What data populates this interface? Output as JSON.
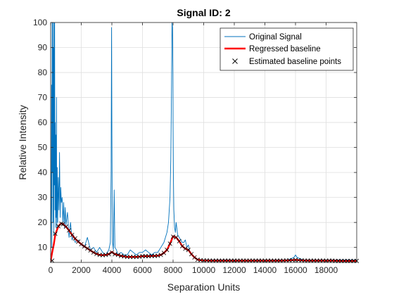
{
  "chart_data": {
    "type": "line",
    "title": "Signal ID: 2",
    "xlabel": "Separation Units",
    "ylabel": "Relative Intensity",
    "xlim": [
      0,
      20000
    ],
    "ylim": [
      4,
      100
    ],
    "xticks": [
      0,
      2000,
      4000,
      6000,
      8000,
      10000,
      12000,
      14000,
      16000,
      18000
    ],
    "yticks": [
      10,
      20,
      30,
      40,
      50,
      60,
      70,
      80,
      90,
      100
    ],
    "grid": true,
    "legend_position": "top-right",
    "colors": {
      "signal": "#0072BD",
      "baseline": "#FF0000",
      "points": "#000000"
    },
    "series": [
      {
        "name": "Original Signal",
        "style": "line",
        "x": [
          0,
          40,
          60,
          80,
          100,
          120,
          140,
          160,
          180,
          200,
          220,
          240,
          260,
          280,
          300,
          320,
          340,
          360,
          380,
          400,
          430,
          460,
          500,
          540,
          580,
          620,
          660,
          700,
          750,
          800,
          850,
          900,
          950,
          1000,
          1100,
          1200,
          1300,
          1400,
          1500,
          1600,
          1800,
          2000,
          2200,
          2400,
          2600,
          2800,
          3000,
          3200,
          3400,
          3600,
          3800,
          3900,
          3950,
          3980,
          4000,
          4020,
          4050,
          4100,
          4150,
          4200,
          4300,
          4400,
          4600,
          4800,
          5000,
          5200,
          5400,
          5600,
          5800,
          6000,
          6200,
          6400,
          6600,
          6800,
          7000,
          7200,
          7400,
          7600,
          7700,
          7800,
          7850,
          7900,
          7930,
          7960,
          7990,
          8000,
          8020,
          8050,
          8100,
          8150,
          8200,
          8300,
          8400,
          8500,
          8600,
          8700,
          8800,
          8900,
          9000,
          9100,
          9200,
          9400,
          9600,
          9800,
          10000,
          10500,
          11000,
          11500,
          12000,
          12500,
          13000,
          13500,
          14000,
          14500,
          15000,
          15500,
          15900,
          16000,
          16100,
          16500,
          17000,
          17500,
          18000,
          18500,
          19000,
          19500,
          20000
        ],
        "y": [
          5,
          30,
          75,
          10,
          100,
          40,
          100,
          20,
          90,
          15,
          100,
          35,
          100,
          25,
          60,
          18,
          55,
          22,
          70,
          16,
          42,
          20,
          38,
          25,
          48,
          22,
          34,
          28,
          30,
          20,
          28,
          18,
          26,
          19,
          24,
          14,
          20,
          13,
          15,
          12,
          13,
          11,
          10,
          14,
          9,
          10,
          8,
          10,
          8,
          7,
          9,
          12,
          40,
          98,
          60,
          30,
          12,
          9,
          33,
          10,
          9,
          7,
          8,
          7,
          7,
          9,
          8,
          7,
          8,
          8,
          9,
          8,
          7,
          8,
          8,
          10,
          12,
          16,
          20,
          30,
          45,
          75,
          100,
          98,
          80,
          60,
          40,
          25,
          18,
          16,
          20,
          15,
          14,
          13,
          12,
          12,
          13,
          10,
          11,
          8,
          7,
          6,
          5,
          5,
          5,
          5,
          5,
          5,
          5,
          4.8,
          4.8,
          5,
          4.8,
          5,
          5,
          5,
          6,
          7,
          6,
          5,
          5,
          5,
          5,
          5,
          5,
          5,
          5
        ]
      },
      {
        "name": "Regressed baseline",
        "style": "thick-line",
        "x": [
          0,
          100,
          200,
          300,
          400,
          500,
          600,
          700,
          800,
          1000,
          1200,
          1400,
          1600,
          1800,
          2000,
          2200,
          2400,
          2600,
          2800,
          3000,
          3200,
          3400,
          3600,
          3800,
          4000,
          4200,
          4400,
          4600,
          4800,
          5000,
          5200,
          5400,
          5600,
          5800,
          6000,
          6200,
          6400,
          6600,
          6800,
          7000,
          7200,
          7400,
          7600,
          7800,
          8000,
          8200,
          8400,
          8600,
          8800,
          9000,
          9200,
          9400,
          9600,
          9800,
          10000,
          10500,
          11000,
          11500,
          12000,
          12500,
          13000,
          13500,
          14000,
          14500,
          15000,
          15500,
          16000,
          16500,
          17000,
          17500,
          18000,
          18500,
          19000,
          19500,
          20000
        ],
        "y": [
          4.5,
          8,
          11,
          15,
          16.8,
          18.3,
          19.2,
          19.6,
          19.4,
          18.3,
          16.8,
          15.0,
          13.5,
          12.3,
          11.3,
          10.4,
          9.6,
          8.8,
          8.0,
          7.4,
          7.0,
          6.9,
          7.0,
          7.3,
          8.2,
          7.3,
          7.0,
          6.6,
          6.4,
          6.2,
          6.2,
          6.2,
          6.2,
          6.3,
          6.5,
          6.5,
          6.5,
          6.6,
          6.6,
          6.7,
          7.0,
          7.8,
          9.0,
          11.5,
          14.5,
          14.0,
          12.5,
          10.5,
          9.5,
          9.0,
          7.3,
          6.0,
          5.1,
          4.9,
          4.8,
          4.7,
          4.7,
          4.7,
          4.7,
          4.7,
          4.7,
          4.7,
          4.7,
          4.7,
          4.7,
          4.8,
          5.0,
          4.8,
          4.7,
          4.7,
          4.7,
          4.7,
          4.6,
          4.6,
          4.6
        ]
      },
      {
        "name": "Estimated baseline points",
        "style": "markers-x",
        "x": [
          100,
          300,
          500,
          700,
          800,
          1000,
          1200,
          1400,
          1600,
          1800,
          2000,
          2200,
          2400,
          2600,
          2800,
          3000,
          3200,
          3400,
          3600,
          3800,
          4000,
          4200,
          4400,
          4600,
          4800,
          5000,
          5200,
          5400,
          5600,
          5800,
          6000,
          6200,
          6400,
          6600,
          6800,
          7000,
          7200,
          7400,
          7600,
          7800,
          8000,
          8200,
          8400,
          8600,
          8800,
          9000,
          9200,
          9400,
          9600,
          9800,
          10000,
          10200,
          10400,
          10600,
          10800,
          11000,
          11200,
          11400,
          11600,
          11800,
          12000,
          12200,
          12400,
          12600,
          12800,
          13000,
          13200,
          13400,
          13600,
          13800,
          14000,
          14200,
          14400,
          14600,
          14800,
          15000,
          15200,
          15400,
          15600,
          15800,
          16000,
          16200,
          16400,
          16600,
          16800,
          17000,
          17200,
          17400,
          17600,
          17800,
          18000,
          18200,
          18400,
          18600,
          18800,
          19000,
          19200,
          19400,
          19600,
          19800,
          20000
        ],
        "y": [
          4.7,
          15.5,
          18.5,
          19.5,
          19.3,
          18.3,
          16.8,
          15.0,
          13.6,
          12.3,
          11.3,
          10.4,
          9.6,
          8.8,
          8.0,
          7.4,
          7.0,
          6.9,
          7.0,
          7.3,
          8.0,
          7.3,
          7.0,
          6.6,
          6.4,
          6.2,
          6.2,
          6.2,
          6.2,
          6.3,
          6.5,
          6.5,
          6.5,
          6.6,
          6.6,
          6.7,
          7.0,
          7.8,
          9.0,
          11.5,
          14.3,
          14.0,
          12.5,
          10.5,
          9.5,
          9.0,
          7.3,
          6.0,
          5.1,
          4.9,
          4.8,
          4.8,
          4.7,
          4.7,
          4.7,
          4.7,
          4.7,
          4.7,
          4.7,
          4.7,
          4.7,
          4.7,
          4.7,
          4.7,
          4.7,
          4.7,
          4.7,
          4.7,
          4.7,
          4.7,
          4.7,
          4.7,
          4.7,
          4.7,
          4.7,
          4.7,
          4.7,
          4.8,
          4.8,
          4.9,
          5.0,
          4.9,
          4.8,
          4.7,
          4.7,
          4.7,
          4.7,
          4.7,
          4.7,
          4.7,
          4.7,
          4.7,
          4.7,
          4.6,
          4.6,
          4.6,
          4.6,
          4.6,
          4.6,
          4.6,
          4.6
        ]
      }
    ]
  }
}
